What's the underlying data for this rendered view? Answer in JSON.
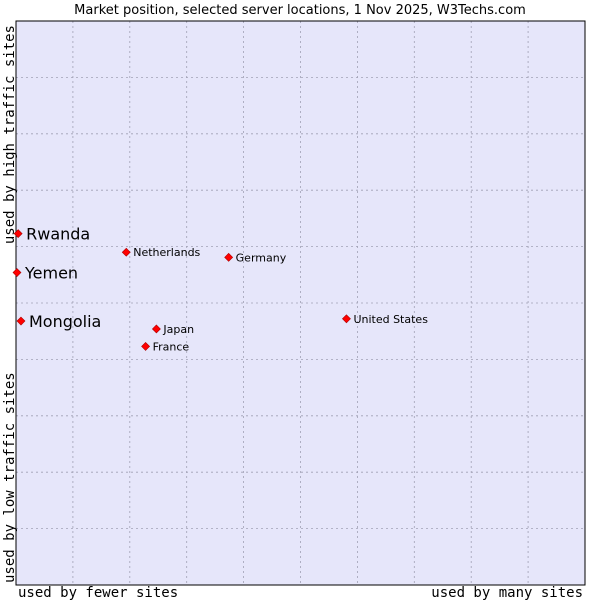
{
  "chart_data": {
    "type": "scatter",
    "title": "Market position, selected server locations, 1 Nov 2025, W3Techs.com",
    "xlabel_left": "used by fewer sites",
    "xlabel_right": "used by many sites",
    "ylabel_top": "used by high traffic sites",
    "ylabel_bottom": "used by low traffic sites",
    "xlim": [
      0,
      100
    ],
    "ylim": [
      0,
      100
    ],
    "grid": true,
    "colors": {
      "plot_bg": "#e6e6fa",
      "point": "#ff0000",
      "point_outline": "#aa0000",
      "grid": "#a0a0b4",
      "frame": "#000000"
    },
    "points": [
      {
        "label": "Rwanda",
        "x": 0.2,
        "y": 62.3,
        "highlight": true
      },
      {
        "label": "Yemen",
        "x": 0.0,
        "y": 55.4,
        "highlight": true
      },
      {
        "label": "Mongolia",
        "x": 0.7,
        "y": 46.8,
        "highlight": true
      },
      {
        "label": "Netherlands",
        "x": 19.2,
        "y": 59.0,
        "highlight": false
      },
      {
        "label": "Germany",
        "x": 37.2,
        "y": 58.1,
        "highlight": false
      },
      {
        "label": "United States",
        "x": 57.9,
        "y": 47.2,
        "highlight": false
      },
      {
        "label": "Japan",
        "x": 24.5,
        "y": 45.4,
        "highlight": false
      },
      {
        "label": "France",
        "x": 22.6,
        "y": 42.3,
        "highlight": false
      }
    ]
  }
}
